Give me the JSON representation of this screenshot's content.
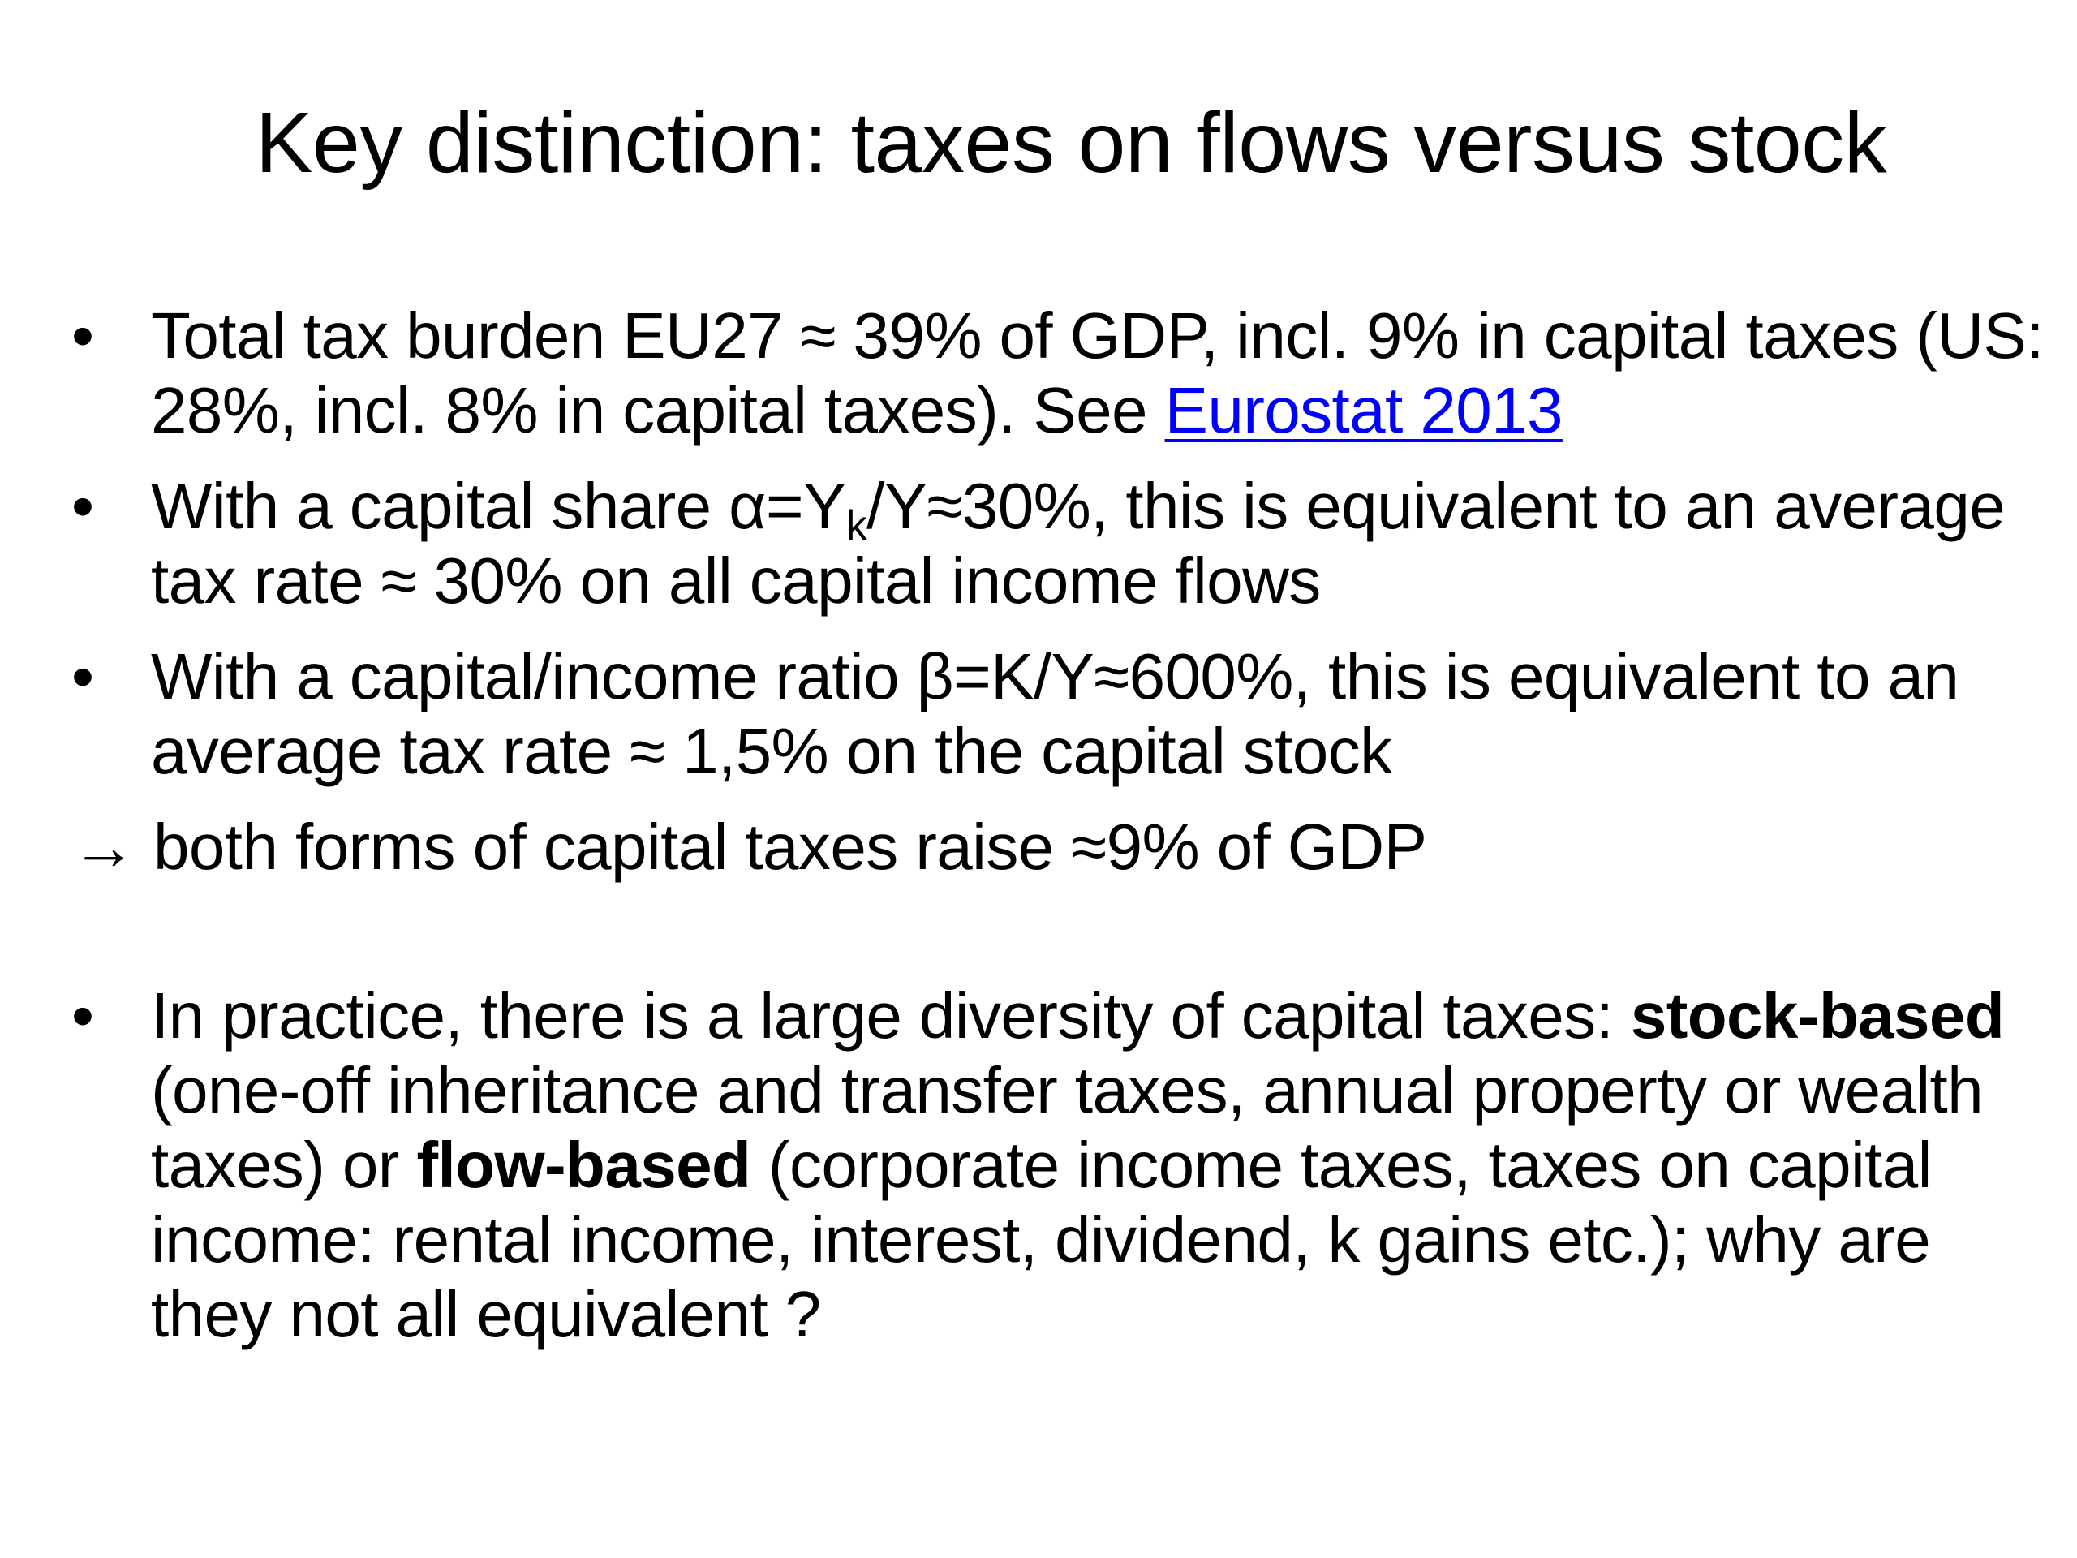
{
  "title": "Key distinction: taxes on flows versus stock",
  "bullet_char": "•",
  "bullets": [
    {
      "text": "Total tax burden EU27 ≈ 39% of GDP, incl. 9% in capital taxes (US: 28%, incl. 8% in capital taxes). See ",
      "link": "Eurostat 2013"
    },
    {
      "text_a": "With a capital share α=Y",
      "sub": "k",
      "text_b": "/Y≈30%, this is equivalent to an average tax rate ≈ 30% on all capital income flows"
    },
    {
      "text": "With a capital/income ratio β=K/Y≈600%, this is equivalent to an average tax rate ≈ 1,5% on the capital stock"
    }
  ],
  "arrow_line": "→ both forms of capital taxes raise ≈9% of GDP",
  "practice_bullet": {
    "t1": "In practice, there is a large diversity of capital taxes: ",
    "b1": "stock-based",
    "t2": " (one-off inheritance and transfer taxes, annual property or wealth taxes) or ",
    "b2": "flow-based",
    "t3": " (corporate income taxes, taxes on capital income: rental income, interest, dividend, k gains etc.); why are they not all equivalent ?"
  },
  "colors": {
    "text": "#000000",
    "link": "#0000ff",
    "background": "#ffffff"
  }
}
